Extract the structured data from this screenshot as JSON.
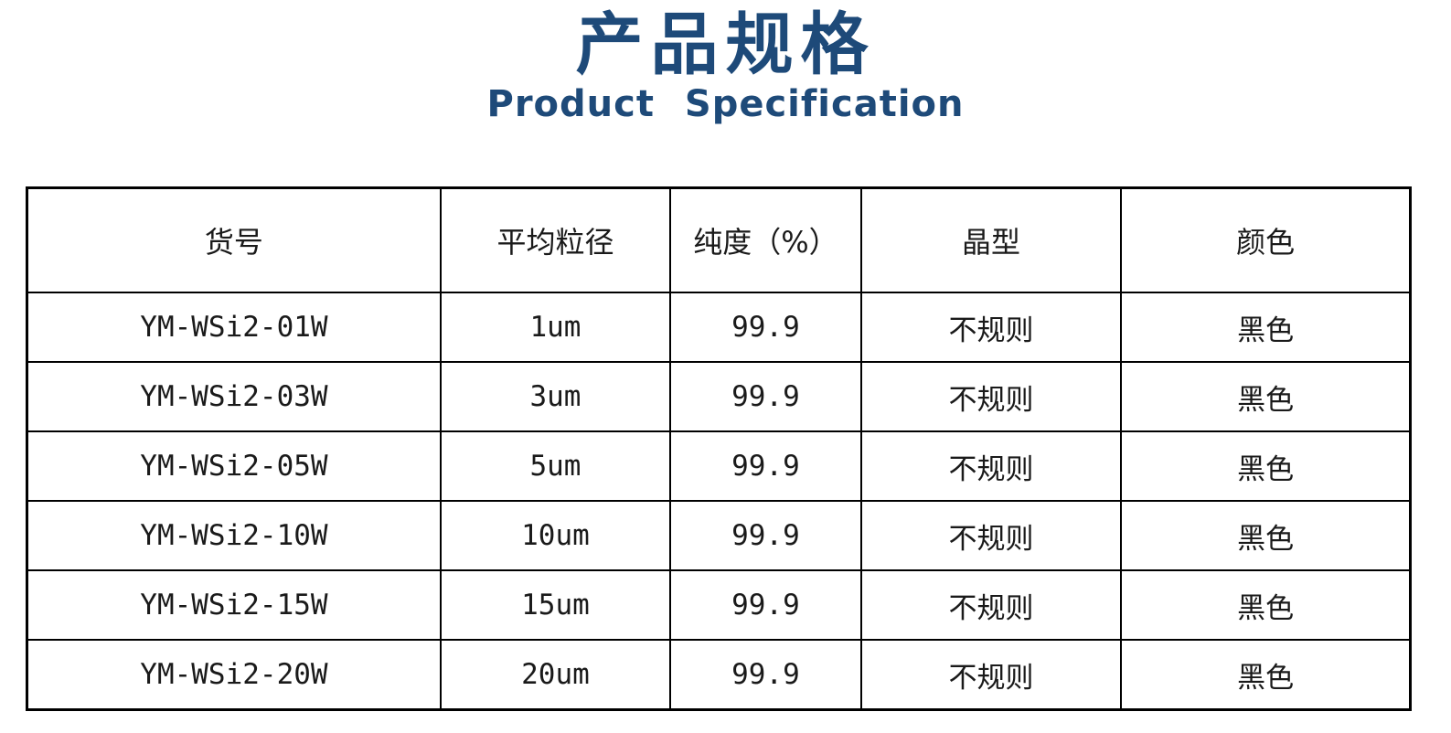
{
  "theme": {
    "title_color": "#1e4a79",
    "border_color": "#000000",
    "text_color": "#1a1a1a",
    "background_color": "#ffffff"
  },
  "header": {
    "title_cn": "产品规格",
    "title_en": "Product Specification"
  },
  "table": {
    "columns": [
      "货号",
      "平均粒径",
      "纯度（%）",
      "晶型",
      "颜色"
    ],
    "rows": [
      [
        "YM-WSi2-01W",
        "1um",
        "99.9",
        "不规则",
        "黑色"
      ],
      [
        "YM-WSi2-03W",
        "3um",
        "99.9",
        "不规则",
        "黑色"
      ],
      [
        "YM-WSi2-05W",
        "5um",
        "99.9",
        "不规则",
        "黑色"
      ],
      [
        "YM-WSi2-10W",
        "10um",
        "99.9",
        "不规则",
        "黑色"
      ],
      [
        "YM-WSi2-15W",
        "15um",
        "99.9",
        "不规则",
        "黑色"
      ],
      [
        "YM-WSi2-20W",
        "20um",
        "99.9",
        "不规则",
        "黑色"
      ]
    ]
  }
}
